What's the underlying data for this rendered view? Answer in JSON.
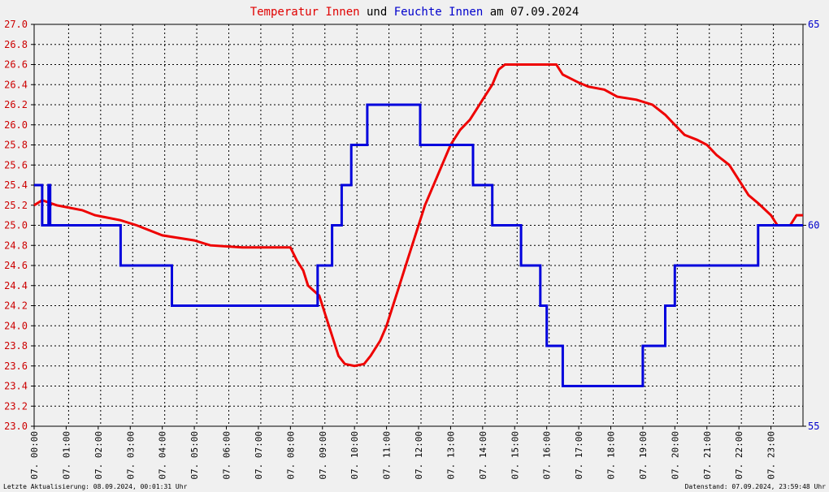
{
  "title": {
    "part1": "Temperatur Innen",
    "part2": " und ",
    "part3": "Feuchte Innen",
    "part4": " am 07.09.2024",
    "color1": "#e00000",
    "color2": "#000000",
    "color3": "#0000cc",
    "color4": "#000000"
  },
  "footer": {
    "left": "Letzte Aktualisierung: 08.09.2024, 00:01:31 Uhr",
    "right": "Datenstand: 07.09.2024, 23:59:48 Uhr"
  },
  "colors": {
    "background": "#f0f0f0",
    "grid": "#000000",
    "temperature": "#ee0000",
    "humidity": "#0000dd",
    "left_axis_text": "#cc0000",
    "right_axis_text": "#0000cc"
  },
  "chart_data": {
    "type": "line",
    "grid": true,
    "x_unit": "hour of day",
    "xlim": [
      0,
      24
    ],
    "x_tick_labels": [
      "07. 00:00",
      "07. 01:00",
      "07. 02:00",
      "07. 03:00",
      "07. 04:00",
      "07. 05:00",
      "07. 06:00",
      "07. 07:00",
      "07. 08:00",
      "07. 09:00",
      "07. 10:00",
      "07. 11:00",
      "07. 12:00",
      "07. 13:00",
      "07. 14:00",
      "07. 15:00",
      "07. 16:00",
      "07. 17:00",
      "07. 18:00",
      "07. 19:00",
      "07. 20:00",
      "07. 21:00",
      "07. 22:00",
      "07. 23:00"
    ],
    "y_left": {
      "range": [
        23.0,
        27.0
      ],
      "ticks": [
        "23.0",
        "23.2",
        "23.4",
        "23.6",
        "23.8",
        "24.0",
        "24.2",
        "24.4",
        "24.6",
        "24.8",
        "25.0",
        "25.2",
        "25.4",
        "25.6",
        "25.8",
        "26.0",
        "26.2",
        "26.4",
        "26.6",
        "26.8",
        "27.0"
      ]
    },
    "y_right": {
      "range": [
        55,
        65
      ],
      "ticks": [
        "55",
        "60",
        "65"
      ]
    },
    "series": [
      {
        "name": "Temperatur Innen",
        "axis": "left",
        "points": [
          [
            0.0,
            25.2
          ],
          [
            0.25,
            25.25
          ],
          [
            0.7,
            25.2
          ],
          [
            1.5,
            25.15
          ],
          [
            1.9,
            25.1
          ],
          [
            2.7,
            25.05
          ],
          [
            3.2,
            25.0
          ],
          [
            4.0,
            24.9
          ],
          [
            4.4,
            24.88
          ],
          [
            5.0,
            24.85
          ],
          [
            5.5,
            24.8
          ],
          [
            6.5,
            24.78
          ],
          [
            8.0,
            24.78
          ],
          [
            8.2,
            24.65
          ],
          [
            8.4,
            24.55
          ],
          [
            8.55,
            24.4
          ],
          [
            8.9,
            24.3
          ],
          [
            9.1,
            24.1
          ],
          [
            9.3,
            23.9
          ],
          [
            9.5,
            23.7
          ],
          [
            9.7,
            23.62
          ],
          [
            10.0,
            23.6
          ],
          [
            10.3,
            23.62
          ],
          [
            10.5,
            23.7
          ],
          [
            10.8,
            23.85
          ],
          [
            11.0,
            24.0
          ],
          [
            11.2,
            24.2
          ],
          [
            11.4,
            24.4
          ],
          [
            11.6,
            24.6
          ],
          [
            11.8,
            24.8
          ],
          [
            12.0,
            25.0
          ],
          [
            12.2,
            25.2
          ],
          [
            12.4,
            25.35
          ],
          [
            12.6,
            25.5
          ],
          [
            12.8,
            25.65
          ],
          [
            13.0,
            25.8
          ],
          [
            13.3,
            25.95
          ],
          [
            13.6,
            26.05
          ],
          [
            13.8,
            26.15
          ],
          [
            14.0,
            26.25
          ],
          [
            14.3,
            26.4
          ],
          [
            14.5,
            26.55
          ],
          [
            14.7,
            26.6
          ],
          [
            15.5,
            26.6
          ],
          [
            16.3,
            26.6
          ],
          [
            16.5,
            26.5
          ],
          [
            17.0,
            26.42
          ],
          [
            17.3,
            26.38
          ],
          [
            17.8,
            26.35
          ],
          [
            18.2,
            26.28
          ],
          [
            18.8,
            26.25
          ],
          [
            19.3,
            26.2
          ],
          [
            19.7,
            26.1
          ],
          [
            20.0,
            26.0
          ],
          [
            20.3,
            25.9
          ],
          [
            20.7,
            25.85
          ],
          [
            21.0,
            25.8
          ],
          [
            21.3,
            25.7
          ],
          [
            21.7,
            25.6
          ],
          [
            22.0,
            25.45
          ],
          [
            22.3,
            25.3
          ],
          [
            22.6,
            25.22
          ],
          [
            23.0,
            25.1
          ],
          [
            23.2,
            25.0
          ],
          [
            23.6,
            25.0
          ],
          [
            23.8,
            25.1
          ],
          [
            24.0,
            25.1
          ]
        ]
      },
      {
        "name": "Feuchte Innen",
        "axis": "right",
        "points": [
          [
            0.0,
            61
          ],
          [
            0.25,
            61
          ],
          [
            0.25,
            60
          ],
          [
            0.45,
            60
          ],
          [
            0.45,
            61
          ],
          [
            0.5,
            61
          ],
          [
            0.5,
            60
          ],
          [
            2.7,
            60
          ],
          [
            2.7,
            59
          ],
          [
            4.3,
            59
          ],
          [
            4.3,
            58
          ],
          [
            8.85,
            58
          ],
          [
            8.85,
            59
          ],
          [
            9.3,
            59
          ],
          [
            9.3,
            60
          ],
          [
            9.6,
            60
          ],
          [
            9.6,
            61
          ],
          [
            9.9,
            61
          ],
          [
            9.9,
            62
          ],
          [
            10.4,
            62
          ],
          [
            10.4,
            63
          ],
          [
            12.05,
            63
          ],
          [
            12.05,
            62
          ],
          [
            13.7,
            62
          ],
          [
            13.7,
            61
          ],
          [
            14.3,
            61
          ],
          [
            14.3,
            60
          ],
          [
            15.2,
            60
          ],
          [
            15.2,
            59
          ],
          [
            15.8,
            59
          ],
          [
            15.8,
            58
          ],
          [
            16.0,
            58
          ],
          [
            16.0,
            57
          ],
          [
            16.5,
            57
          ],
          [
            16.5,
            56
          ],
          [
            19.0,
            56
          ],
          [
            19.0,
            57
          ],
          [
            19.7,
            57
          ],
          [
            19.7,
            58
          ],
          [
            20.0,
            58
          ],
          [
            20.0,
            59
          ],
          [
            22.6,
            59
          ],
          [
            22.6,
            60
          ],
          [
            24.0,
            60
          ]
        ]
      }
    ]
  }
}
